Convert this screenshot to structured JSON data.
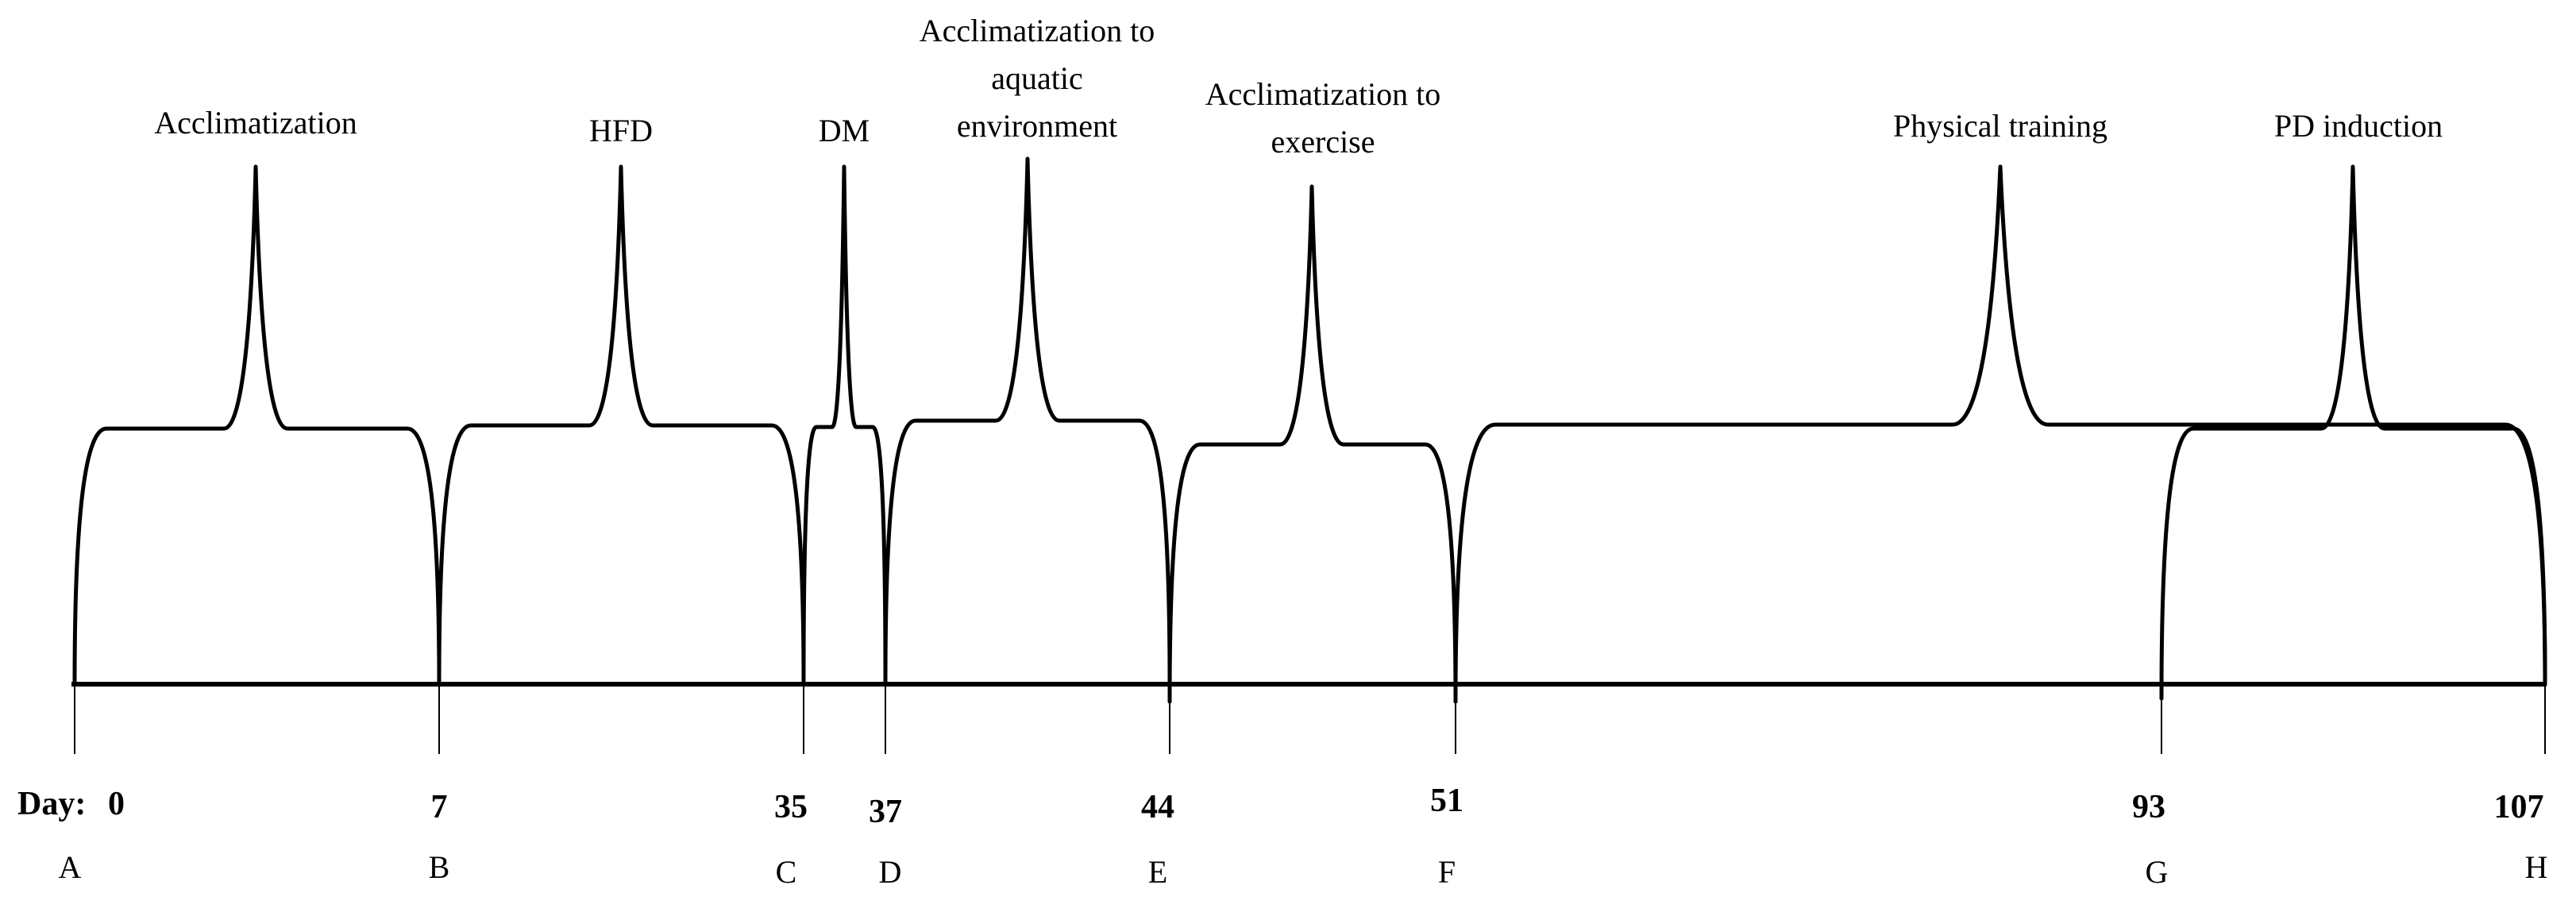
{
  "diagram": {
    "day_prefix": "Day:",
    "milestones": [
      {
        "day": "0",
        "letter": "A"
      },
      {
        "day": "7",
        "letter": "B"
      },
      {
        "day": "35",
        "letter": "C"
      },
      {
        "day": "37",
        "letter": "D"
      },
      {
        "day": "44",
        "letter": "E"
      },
      {
        "day": "51",
        "letter": "F"
      },
      {
        "day": "93",
        "letter": "G"
      },
      {
        "day": "107",
        "letter": "H"
      }
    ],
    "phases": [
      {
        "lines": [
          "Acclimatization"
        ]
      },
      {
        "lines": [
          "HFD"
        ]
      },
      {
        "lines": [
          "DM"
        ]
      },
      {
        "lines": [
          "Acclimatization to",
          "aquatic",
          "environment"
        ]
      },
      {
        "lines": [
          "Acclimatization to",
          "exercise"
        ]
      },
      {
        "lines": [
          "Physical training"
        ]
      },
      {
        "lines": [
          "PD induction"
        ]
      }
    ]
  }
}
